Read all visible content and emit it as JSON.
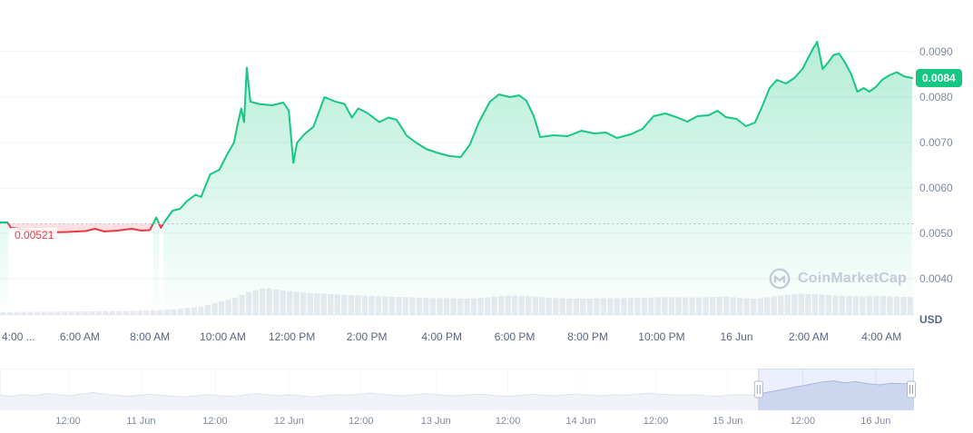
{
  "colors": {
    "up": "#16c784",
    "down": "#ea3943",
    "up_fill_top": "rgba(22,199,132,0.32)",
    "down_fill": "rgba(234,57,67,0.16)",
    "grid": "#eff2f5",
    "axis_line": "#e6e9ef",
    "ref_line": "#b0b8c9",
    "axis_text": "#808a9d",
    "x_text": "#58667e",
    "volume_bar": "#e7eaf0",
    "nav_fill": "#dde3f0",
    "nav_line": "#b4c0dc",
    "nav_grid": "#edf0f5",
    "nav_border": "#e3e7ee",
    "nav_selection": "rgba(71,108,240,0.10)",
    "watermark": "#c3cbd9",
    "badge_bg": "#16c784"
  },
  "price_labels": {
    "open": "0.00521",
    "current": "0.0084"
  },
  "y_axis": {
    "unit_label": "USD",
    "ticks": [
      "0.0090",
      "0.0080",
      "0.0070",
      "0.0060",
      "0.0050",
      "0.0040"
    ]
  },
  "x_axis": {
    "ticks": [
      {
        "label": "4:00 ...",
        "pct": 1.9
      },
      {
        "label": "6:00 AM",
        "pct": 8.2
      },
      {
        "label": "8:00 AM",
        "pct": 15.4
      },
      {
        "label": "10:00 AM",
        "pct": 22.9
      },
      {
        "label": "12:00 PM",
        "pct": 30.0
      },
      {
        "label": "2:00 PM",
        "pct": 37.7
      },
      {
        "label": "4:00 PM",
        "pct": 45.4
      },
      {
        "label": "6:00 PM",
        "pct": 52.9
      },
      {
        "label": "8:00 PM",
        "pct": 60.4
      },
      {
        "label": "10:00 PM",
        "pct": 68.0
      },
      {
        "label": "16 Jun",
        "pct": 75.7
      },
      {
        "label": "2:00 AM",
        "pct": 83.1
      },
      {
        "label": "4:00 AM",
        "pct": 90.6
      }
    ]
  },
  "watermark": {
    "text": "CoinMarketCap",
    "icon": "coinmarketcap-logo"
  },
  "navigator": {
    "selection": {
      "start_pct": 83.0,
      "end_pct": 100
    },
    "ticks": [
      {
        "label": "12:00",
        "pct": 7.0
      },
      {
        "label": "11 Jun",
        "pct": 14.5
      },
      {
        "label": "12:00",
        "pct": 22.1
      },
      {
        "label": "12 Jun",
        "pct": 29.7
      },
      {
        "label": "12:00",
        "pct": 37.1
      },
      {
        "label": "13 Jun",
        "pct": 44.8
      },
      {
        "label": "12:00",
        "pct": 52.2
      },
      {
        "label": "14 Jun",
        "pct": 59.7
      },
      {
        "label": "12:00",
        "pct": 67.4
      },
      {
        "label": "15 Jun",
        "pct": 74.8
      },
      {
        "label": "12:00",
        "pct": 82.5
      },
      {
        "label": "16 Jun",
        "pct": 90.0
      }
    ]
  },
  "chart_data": {
    "type": "area",
    "title": "Cryptocurrency price chart (CoinMarketCap)",
    "unit": "USD",
    "open_price": 0.00521,
    "current_price": 0.0084,
    "session_low": 0.005,
    "session_high": 0.0092,
    "ylim": [
      0.004,
      0.009
    ],
    "y_ticks": [
      0.004,
      0.005,
      0.006,
      0.007,
      0.008,
      0.009
    ],
    "x_tick_labels": [
      "4:00 ...",
      "6:00 AM",
      "8:00 AM",
      "10:00 AM",
      "12:00 PM",
      "2:00 PM",
      "4:00 PM",
      "6:00 PM",
      "8:00 PM",
      "10:00 PM",
      "16 Jun",
      "2:00 AM",
      "4:00 AM"
    ],
    "points_format": "[percent_of_x_axis, price_usd]",
    "points": [
      [
        0,
        0.00524
      ],
      [
        0.8,
        0.00524
      ],
      [
        1.2,
        0.00512
      ],
      [
        3,
        0.00508
      ],
      [
        5.5,
        0.00502
      ],
      [
        7.4,
        0.00503
      ],
      [
        9.4,
        0.00505
      ],
      [
        10.4,
        0.0051
      ],
      [
        11.4,
        0.00504
      ],
      [
        12.9,
        0.00506
      ],
      [
        14.4,
        0.0051
      ],
      [
        15.4,
        0.00506
      ],
      [
        16.4,
        0.00507
      ],
      [
        17.1,
        0.00535
      ],
      [
        17.6,
        0.00512
      ],
      [
        18.1,
        0.00528
      ],
      [
        18.9,
        0.0055
      ],
      [
        19.7,
        0.00554
      ],
      [
        20.4,
        0.0057
      ],
      [
        21.4,
        0.00585
      ],
      [
        22,
        0.0058
      ],
      [
        23,
        0.0063
      ],
      [
        24,
        0.0064
      ],
      [
        24.8,
        0.00672
      ],
      [
        25.6,
        0.007
      ],
      [
        26,
        0.0074
      ],
      [
        26.4,
        0.00775
      ],
      [
        26.7,
        0.00745
      ],
      [
        27,
        0.00865
      ],
      [
        27.4,
        0.0079
      ],
      [
        28.3,
        0.00785
      ],
      [
        29.8,
        0.00782
      ],
      [
        31,
        0.00788
      ],
      [
        31.6,
        0.0077
      ],
      [
        32.1,
        0.00655
      ],
      [
        32.5,
        0.007
      ],
      [
        33.3,
        0.00718
      ],
      [
        34.3,
        0.00735
      ],
      [
        35.5,
        0.008
      ],
      [
        36.7,
        0.0079
      ],
      [
        37.7,
        0.00785
      ],
      [
        38.5,
        0.00755
      ],
      [
        39.2,
        0.00775
      ],
      [
        40.2,
        0.00765
      ],
      [
        41.5,
        0.00745
      ],
      [
        42.5,
        0.00755
      ],
      [
        43.4,
        0.0075
      ],
      [
        44.5,
        0.00715
      ],
      [
        45.5,
        0.007
      ],
      [
        46.7,
        0.00685
      ],
      [
        47.9,
        0.00677
      ],
      [
        49.2,
        0.0067
      ],
      [
        50.4,
        0.00668
      ],
      [
        51.4,
        0.00695
      ],
      [
        52.4,
        0.00745
      ],
      [
        53.6,
        0.0079
      ],
      [
        54.6,
        0.00806
      ],
      [
        55.8,
        0.008
      ],
      [
        56.8,
        0.00804
      ],
      [
        57.6,
        0.00792
      ],
      [
        58.4,
        0.00758
      ],
      [
        59.1,
        0.00712
      ],
      [
        60.6,
        0.00716
      ],
      [
        62.1,
        0.00714
      ],
      [
        63.6,
        0.00726
      ],
      [
        65,
        0.0072
      ],
      [
        66.3,
        0.00722
      ],
      [
        67.5,
        0.0071
      ],
      [
        69,
        0.00718
      ],
      [
        70.3,
        0.0073
      ],
      [
        71.5,
        0.00758
      ],
      [
        72.8,
        0.00764
      ],
      [
        74,
        0.00756
      ],
      [
        75.2,
        0.00746
      ],
      [
        76.3,
        0.00758
      ],
      [
        77.5,
        0.0076
      ],
      [
        78.5,
        0.0077
      ],
      [
        79.4,
        0.00756
      ],
      [
        80.6,
        0.00752
      ],
      [
        81.6,
        0.00736
      ],
      [
        82.6,
        0.00744
      ],
      [
        83.4,
        0.0078
      ],
      [
        84.2,
        0.0082
      ],
      [
        85,
        0.00838
      ],
      [
        86,
        0.0083
      ],
      [
        86.9,
        0.00842
      ],
      [
        87.8,
        0.00862
      ],
      [
        88.9,
        0.00905
      ],
      [
        89.4,
        0.00922
      ],
      [
        90,
        0.00862
      ],
      [
        90.6,
        0.00876
      ],
      [
        91.2,
        0.00893
      ],
      [
        91.8,
        0.00896
      ],
      [
        92.4,
        0.00878
      ],
      [
        93.1,
        0.00852
      ],
      [
        93.8,
        0.00812
      ],
      [
        94.5,
        0.0082
      ],
      [
        95.1,
        0.00812
      ],
      [
        95.8,
        0.00822
      ],
      [
        96.5,
        0.00838
      ],
      [
        97.3,
        0.00848
      ],
      [
        98.1,
        0.00855
      ],
      [
        98.9,
        0.00846
      ],
      [
        99.8,
        0.00842
      ]
    ],
    "volume_relative": [
      0.1,
      0.11,
      0.12,
      0.12,
      0.13,
      0.13,
      0.14,
      0.14,
      0.15,
      0.16,
      0.18,
      0.2,
      0.26,
      0.32,
      0.48,
      0.62,
      0.85,
      1.0,
      0.92,
      0.85,
      0.8,
      0.78,
      0.75,
      0.72,
      0.7,
      0.68,
      0.66,
      0.64,
      0.62,
      0.62,
      0.6,
      0.62,
      0.68,
      0.72,
      0.7,
      0.66,
      0.62,
      0.6,
      0.6,
      0.62,
      0.62,
      0.63,
      0.64,
      0.66,
      0.65,
      0.64,
      0.66,
      0.68,
      0.62,
      0.6,
      0.68,
      0.74,
      0.78,
      0.76,
      0.72,
      0.7,
      0.68,
      0.7,
      0.68,
      0.66
    ],
    "navigator_series_relative": [
      0.42,
      0.38,
      0.45,
      0.4,
      0.48,
      0.44,
      0.4,
      0.46,
      0.52,
      0.46,
      0.42,
      0.38,
      0.42,
      0.46,
      0.42,
      0.38,
      0.36,
      0.4,
      0.44,
      0.4,
      0.38,
      0.42,
      0.48,
      0.44,
      0.4,
      0.44,
      0.4,
      0.36,
      0.4,
      0.44,
      0.42,
      0.46,
      0.5,
      0.46,
      0.42,
      0.4,
      0.44,
      0.48,
      0.44,
      0.4,
      0.42,
      0.46,
      0.44,
      0.4,
      0.38,
      0.42,
      0.46,
      0.42,
      0.4,
      0.44,
      0.46,
      0.42,
      0.4,
      0.44,
      0.42,
      0.46,
      0.5,
      0.46,
      0.44,
      0.42,
      0.44,
      0.4,
      0.38,
      0.42,
      0.44,
      0.42,
      0.5,
      0.58,
      0.66,
      0.74,
      0.82,
      0.9,
      0.95,
      0.88,
      0.92,
      0.84,
      0.8,
      0.86,
      0.84,
      0.85
    ]
  }
}
